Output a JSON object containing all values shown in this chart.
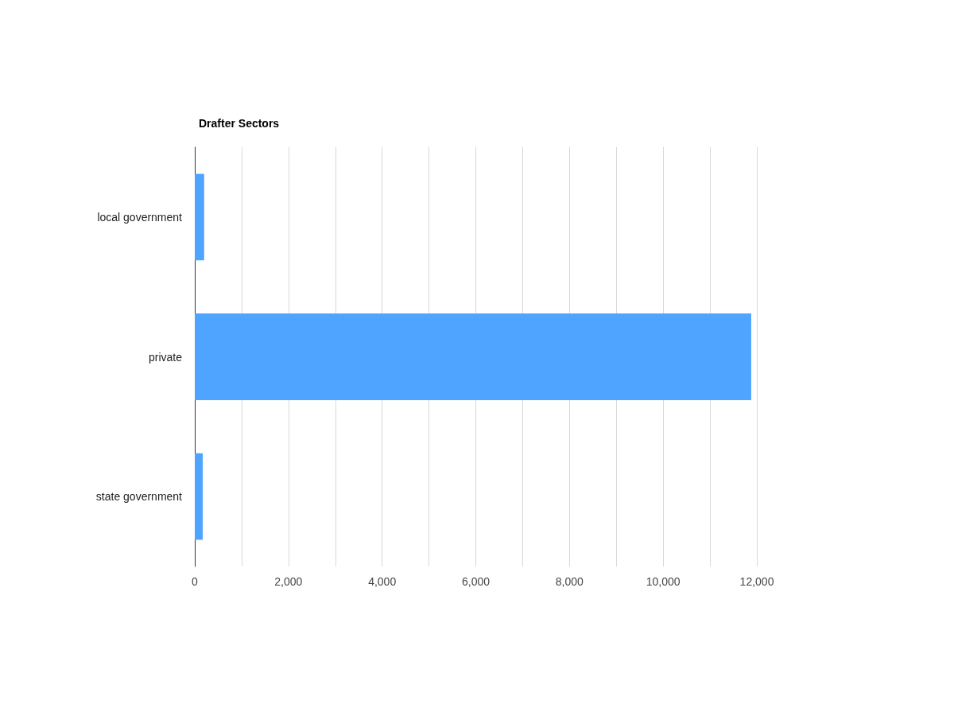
{
  "chart_data": {
    "type": "bar",
    "orientation": "horizontal",
    "title": "Drafter Sectors",
    "categories": [
      "local government",
      "private",
      "state government"
    ],
    "values": [
      200,
      11880,
      170
    ],
    "color": "#4ea4ff",
    "xlim": [
      0,
      12000
    ],
    "xticks": [
      0,
      {
        "value": 1000,
        "label": null
      },
      {
        "value": 2000,
        "label": "2,000"
      },
      {
        "value": 3000,
        "label": null
      },
      {
        "value": 4000,
        "label": "4,000"
      },
      {
        "value": 5000,
        "label": null
      },
      {
        "value": 6000,
        "label": "6,000"
      },
      {
        "value": 7000,
        "label": null
      },
      {
        "value": 8000,
        "label": "8,000"
      },
      {
        "value": 9000,
        "label": null
      },
      {
        "value": 10000,
        "label": "10,000"
      },
      {
        "value": 11000,
        "label": null
      },
      {
        "value": 12000,
        "label": "12,000"
      }
    ],
    "grid": "x"
  }
}
